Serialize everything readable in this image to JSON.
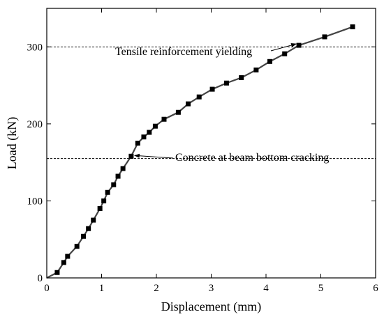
{
  "chart_data": {
    "type": "line",
    "title": "",
    "xlabel": "Displacement (mm)",
    "ylabel": "Load (kN)",
    "xlim": [
      0,
      6
    ],
    "ylim": [
      0,
      350
    ],
    "xticks": [
      0,
      1,
      2,
      3,
      4,
      5,
      6
    ],
    "xtick_labels": [
      "0",
      "1",
      "2",
      "3",
      "4",
      "5",
      "6"
    ],
    "yticks": [
      0,
      100,
      200,
      300
    ],
    "ytick_labels": [
      "0",
      "100",
      "200",
      "300"
    ],
    "grid": false,
    "legend": "none",
    "series": [
      {
        "marker": "square",
        "color": "#444444",
        "marker_color": "#000000",
        "x": [
          0,
          0.19,
          0.31,
          0.38,
          0.55,
          0.67,
          0.76,
          0.85,
          0.97,
          1.04,
          1.11,
          1.22,
          1.3,
          1.39,
          1.54,
          1.66,
          1.77,
          1.87,
          1.98,
          2.14,
          2.4,
          2.58,
          2.78,
          3.02,
          3.28,
          3.55,
          3.82,
          4.07,
          4.34,
          4.6,
          5.07,
          5.58
        ],
        "y": [
          0,
          7,
          20,
          28,
          41,
          54,
          64,
          75,
          90,
          100,
          111,
          121,
          132,
          142,
          158,
          175,
          183,
          189,
          197,
          206,
          215,
          226,
          235,
          245,
          253,
          260,
          270,
          281,
          291,
          302,
          313,
          326
        ]
      }
    ],
    "reference_lines": [
      {
        "axis": "y",
        "value": 300,
        "style": "dashed"
      },
      {
        "axis": "y",
        "value": 155,
        "style": "dashed"
      }
    ],
    "annotations": [
      {
        "text": "Tensile reinforcement yielding",
        "x": 4.6,
        "y": 302
      },
      {
        "text": "Concrete at beam bottom cracking",
        "x": 1.54,
        "y": 158
      }
    ]
  }
}
